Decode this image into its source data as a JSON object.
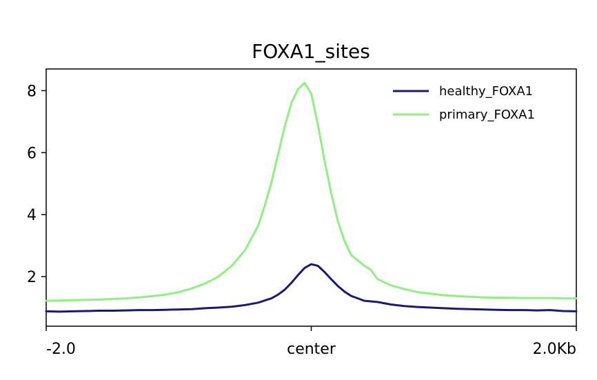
{
  "chart_data": {
    "type": "line",
    "title": "FOXA1_sites",
    "xlabel": "",
    "ylabel": "",
    "x_range": [
      -2000,
      2000
    ],
    "x_ticks": [
      {
        "value": -2000,
        "label": "-2.0"
      },
      {
        "value": 0,
        "label": "center"
      },
      {
        "value": 2000,
        "label": "2.0Kb"
      }
    ],
    "ylim": [
      0.4,
      8.7
    ],
    "y_ticks": [
      {
        "value": 2,
        "label": "2"
      },
      {
        "value": 4,
        "label": "4"
      },
      {
        "value": 6,
        "label": "6"
      },
      {
        "value": 8,
        "label": "8"
      }
    ],
    "grid": false,
    "legend_position": "top-right",
    "series": [
      {
        "name": "healthy_FOXA1",
        "color": "#191970",
        "x": [
          -2000,
          -1900,
          -1800,
          -1700,
          -1600,
          -1500,
          -1400,
          -1300,
          -1200,
          -1100,
          -1000,
          -900,
          -800,
          -700,
          -600,
          -500,
          -400,
          -300,
          -250,
          -200,
          -150,
          -100,
          -50,
          0,
          50,
          100,
          150,
          200,
          250,
          300,
          400,
          450,
          500,
          600,
          700,
          800,
          900,
          1000,
          1100,
          1200,
          1300,
          1400,
          1500,
          1600,
          1700,
          1800,
          1900,
          2000
        ],
        "y": [
          0.88,
          0.87,
          0.88,
          0.89,
          0.9,
          0.9,
          0.91,
          0.92,
          0.92,
          0.93,
          0.94,
          0.95,
          0.98,
          1.0,
          1.03,
          1.08,
          1.16,
          1.3,
          1.42,
          1.58,
          1.8,
          2.05,
          2.28,
          2.4,
          2.35,
          2.15,
          1.92,
          1.7,
          1.52,
          1.38,
          1.22,
          1.2,
          1.18,
          1.1,
          1.05,
          1.02,
          1.0,
          0.98,
          0.96,
          0.95,
          0.94,
          0.93,
          0.92,
          0.92,
          0.91,
          0.92,
          0.89,
          0.88
        ]
      },
      {
        "name": "primary_FOXA1",
        "color": "#90ee82",
        "x": [
          -2000,
          -1900,
          -1800,
          -1700,
          -1600,
          -1500,
          -1400,
          -1300,
          -1200,
          -1100,
          -1000,
          -900,
          -800,
          -700,
          -600,
          -500,
          -400,
          -350,
          -300,
          -250,
          -200,
          -150,
          -100,
          -50,
          0,
          50,
          100,
          150,
          200,
          250,
          300,
          400,
          450,
          500,
          600,
          700,
          800,
          900,
          1000,
          1100,
          1200,
          1300,
          1400,
          1500,
          1600,
          1700,
          1800,
          1900,
          2000
        ],
        "y": [
          1.22,
          1.23,
          1.24,
          1.25,
          1.26,
          1.28,
          1.3,
          1.33,
          1.37,
          1.42,
          1.5,
          1.62,
          1.78,
          2.0,
          2.35,
          2.85,
          3.65,
          4.3,
          5.05,
          5.95,
          6.85,
          7.6,
          8.05,
          8.25,
          7.9,
          6.9,
          5.75,
          4.7,
          3.8,
          3.15,
          2.7,
          2.35,
          2.22,
          1.92,
          1.72,
          1.6,
          1.5,
          1.45,
          1.4,
          1.37,
          1.35,
          1.33,
          1.32,
          1.32,
          1.31,
          1.31,
          1.31,
          1.3,
          1.3
        ]
      }
    ]
  }
}
